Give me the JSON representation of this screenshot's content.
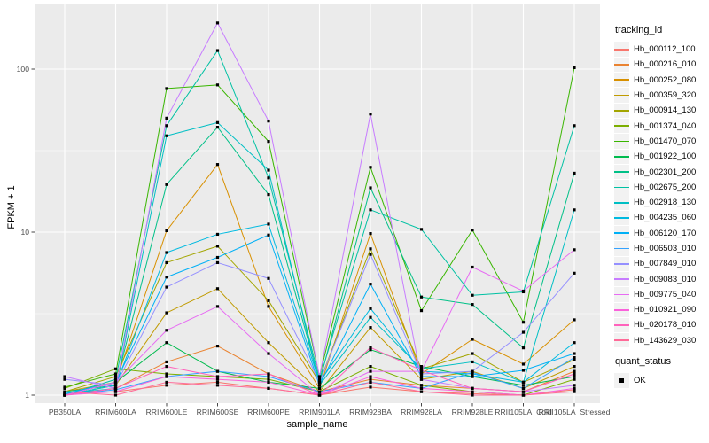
{
  "page": {
    "background": "#ffffff",
    "panel_background": "#EBEBEB",
    "gridline_color": "#FFFFFF",
    "tick_label_color": "#4D4D4D"
  },
  "axes": {
    "x_title": "sample_name",
    "y_title": "FPKM + 1",
    "y_tick_labels": [
      "1",
      "10",
      "100"
    ]
  },
  "legend": {
    "tracking_title": "tracking_id",
    "quant_title": "quant_status",
    "quant_ok_label": "OK",
    "key_background": "#F2F2F2",
    "point_marker_color": "#000000"
  },
  "chart_data": {
    "type": "line",
    "title": "",
    "xlabel": "sample_name",
    "ylabel": "FPKM + 1",
    "y_scale": "log10",
    "y_major_ticks": [
      1,
      10,
      100
    ],
    "y_minor_gridlines": [
      3.1623,
      31.623
    ],
    "ylim": [
      1,
      210
    ],
    "grid": true,
    "legend_position": "right",
    "point_marker": "black-square",
    "quant_status": "OK",
    "categories": [
      "PB350LA",
      "RRIM600LA",
      "RRIM600LE",
      "RRIM600SE",
      "RRIM600PE",
      "RRIM901LA",
      "RRIM928BA",
      "RRIM928LA",
      "RRIM928LE",
      "RRII105LA_Cold",
      "RRII105LA_Stressed"
    ],
    "series": [
      {
        "name": "Hb_000112_100",
        "color": "#F8766D",
        "values": [
          1.02,
          1.05,
          1.15,
          1.2,
          1.1,
          1.0,
          1.12,
          1.05,
          1.02,
          1.0,
          1.08
        ]
      },
      {
        "name": "Hb_000216_010",
        "color": "#EA8331",
        "values": [
          1.0,
          1.1,
          1.6,
          2.0,
          1.35,
          1.05,
          1.25,
          1.15,
          1.1,
          1.05,
          1.4
        ]
      },
      {
        "name": "Hb_000252_080",
        "color": "#D89000",
        "values": [
          1.05,
          1.2,
          10.2,
          26,
          3.5,
          1.1,
          9.8,
          1.35,
          2.2,
          1.55,
          2.9
        ]
      },
      {
        "name": "Hb_000359_320",
        "color": "#C09B00",
        "values": [
          1.0,
          1.15,
          3.2,
          4.5,
          2.1,
          1.05,
          2.6,
          1.25,
          1.4,
          1.1,
          1.5
        ]
      },
      {
        "name": "Hb_000914_130",
        "color": "#A3A500",
        "values": [
          1.05,
          1.3,
          6.5,
          8.2,
          3.8,
          1.2,
          7.9,
          1.45,
          1.8,
          1.2,
          1.65
        ]
      },
      {
        "name": "Hb_001374_040",
        "color": "#7CAE00",
        "values": [
          1.1,
          1.45,
          1.35,
          1.3,
          1.25,
          1.05,
          1.5,
          1.15,
          1.05,
          1.0,
          1.25
        ]
      },
      {
        "name": "Hb_001470_070",
        "color": "#39B600",
        "values": [
          1.12,
          1.35,
          76,
          80,
          36,
          1.3,
          25,
          3.3,
          10.3,
          2.8,
          102
        ]
      },
      {
        "name": "Hb_001922_100",
        "color": "#00BB4E",
        "values": [
          1.0,
          1.2,
          2.1,
          1.4,
          1.2,
          1.1,
          1.9,
          1.5,
          1.3,
          1.15,
          1.3
        ]
      },
      {
        "name": "Hb_002301_200",
        "color": "#00C087",
        "values": [
          1.05,
          1.15,
          19.6,
          44,
          17,
          1.2,
          18.7,
          4.0,
          3.6,
          1.95,
          23
        ]
      },
      {
        "name": "Hb_002675_200",
        "color": "#00C1A3",
        "values": [
          1.0,
          1.25,
          45,
          130,
          21.5,
          1.25,
          13.7,
          10.4,
          4.1,
          4.3,
          45
        ]
      },
      {
        "name": "Hb_002918_130",
        "color": "#00BFC4",
        "values": [
          1.02,
          1.1,
          39,
          47,
          24,
          1.15,
          3.0,
          1.45,
          1.6,
          1.2,
          13.7
        ]
      },
      {
        "name": "Hb_004235_060",
        "color": "#00BAE0",
        "values": [
          1.0,
          1.15,
          7.5,
          9.7,
          11.2,
          1.2,
          3.4,
          1.4,
          1.35,
          1.2,
          2.1
        ]
      },
      {
        "name": "Hb_006120_170",
        "color": "#00B0F6",
        "values": [
          1.02,
          1.2,
          5.3,
          7.0,
          9.6,
          1.15,
          4.8,
          1.3,
          1.3,
          1.42,
          1.8
        ]
      },
      {
        "name": "Hb_006503_010",
        "color": "#35A2FF",
        "values": [
          1.0,
          1.08,
          1.3,
          1.4,
          1.3,
          1.05,
          1.2,
          1.1,
          1.38,
          1.1,
          1.7
        ]
      },
      {
        "name": "Hb_007849_010",
        "color": "#9590FF",
        "values": [
          1.25,
          1.15,
          4.6,
          6.5,
          5.2,
          1.2,
          7.3,
          1.35,
          1.4,
          2.43,
          5.6
        ]
      },
      {
        "name": "Hb_009083_010",
        "color": "#C77CFF",
        "values": [
          1.3,
          1.1,
          50,
          192,
          48,
          1.3,
          53,
          1.25,
          1.1,
          1.05,
          1.15
        ]
      },
      {
        "name": "Hb_009775_040",
        "color": "#E76BF3",
        "values": [
          1.0,
          1.2,
          2.5,
          3.5,
          1.8,
          1.0,
          1.4,
          1.4,
          6.1,
          4.35,
          7.8
        ]
      },
      {
        "name": "Hb_010921_090",
        "color": "#FA62DB",
        "values": [
          1.0,
          1.05,
          1.3,
          1.25,
          1.2,
          1.0,
          1.3,
          1.1,
          1.05,
          1.0,
          1.1
        ]
      },
      {
        "name": "Hb_020178_010",
        "color": "#FF62BC",
        "values": [
          1.0,
          1.1,
          1.5,
          1.3,
          1.35,
          1.0,
          1.96,
          1.42,
          1.1,
          1.05,
          1.35
        ]
      },
      {
        "name": "Hb_143629_030",
        "color": "#FF6A98",
        "values": [
          1.05,
          1.0,
          1.2,
          1.15,
          1.1,
          1.0,
          1.2,
          1.05,
          1.0,
          1.0,
          1.05
        ]
      }
    ]
  }
}
